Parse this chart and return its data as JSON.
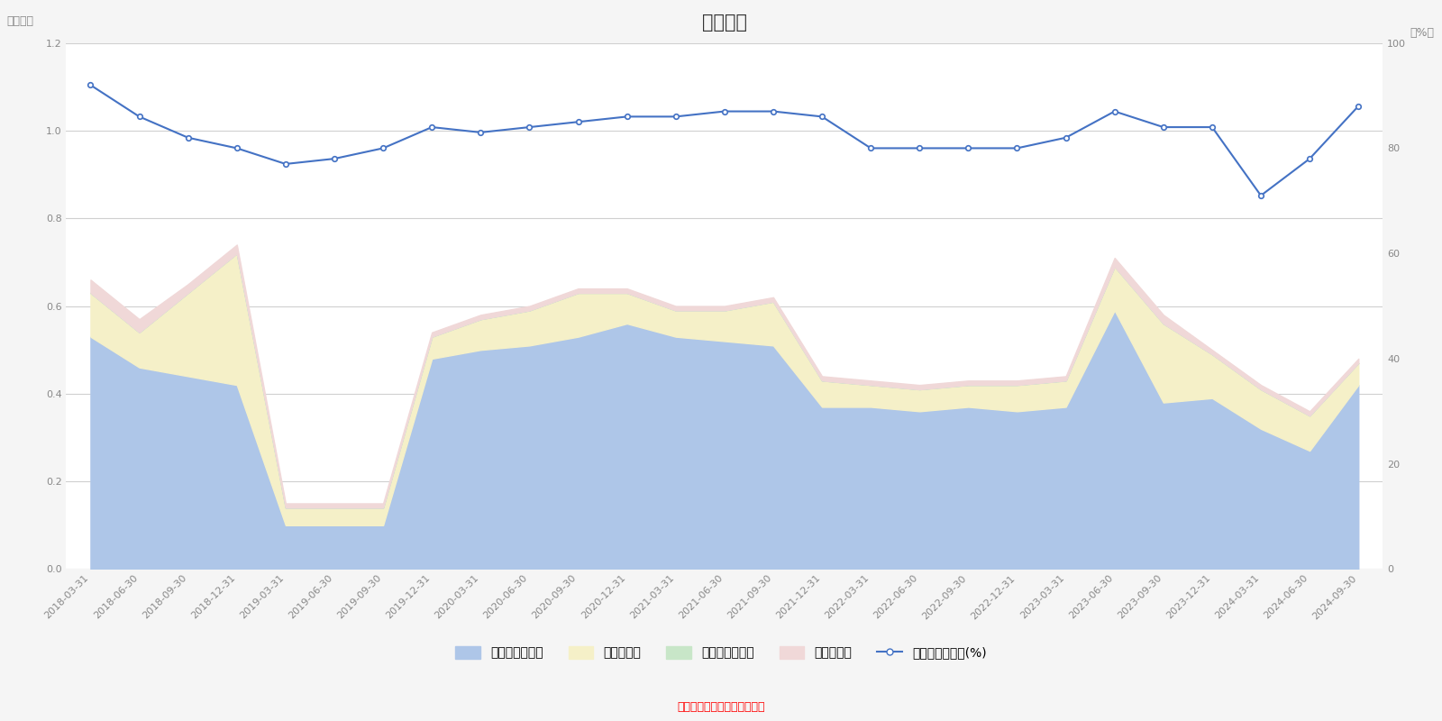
{
  "title": "仓位变化",
  "ylabel_left": "（亿元）",
  "ylabel_right": "（%）",
  "source_text": "制图数据来自恒生聚源数据库",
  "ylim_left": [
    0,
    1.2
  ],
  "ylim_right": [
    0,
    100
  ],
  "yticks_left": [
    0,
    0.2,
    0.4,
    0.6,
    0.8,
    1.0,
    1.2
  ],
  "yticks_right": [
    0,
    20,
    40,
    60,
    80,
    100
  ],
  "dates": [
    "2018-03-31",
    "2018-06-30",
    "2018-09-30",
    "2018-12-31",
    "2019-03-31",
    "2019-06-30",
    "2019-09-30",
    "2019-12-31",
    "2020-03-31",
    "2020-06-30",
    "2020-09-30",
    "2020-12-31",
    "2021-03-31",
    "2021-06-30",
    "2021-09-30",
    "2021-12-31",
    "2022-03-31",
    "2022-06-30",
    "2022-09-30",
    "2022-12-31",
    "2023-03-31",
    "2023-06-30",
    "2023-09-30",
    "2023-12-31",
    "2024-03-31",
    "2024-06-30",
    "2024-09-30"
  ],
  "stock_values": [
    0.53,
    0.46,
    0.44,
    0.42,
    0.1,
    0.1,
    0.1,
    0.48,
    0.5,
    0.51,
    0.53,
    0.56,
    0.53,
    0.52,
    0.51,
    0.37,
    0.37,
    0.36,
    0.37,
    0.36,
    0.37,
    0.59,
    0.38,
    0.39,
    0.32,
    0.27,
    0.42
  ],
  "cash_values": [
    0.1,
    0.08,
    0.19,
    0.3,
    0.04,
    0.04,
    0.04,
    0.05,
    0.07,
    0.08,
    0.1,
    0.07,
    0.06,
    0.07,
    0.1,
    0.06,
    0.05,
    0.05,
    0.05,
    0.06,
    0.06,
    0.1,
    0.18,
    0.1,
    0.09,
    0.08,
    0.05
  ],
  "bond_values": [
    0.0,
    0.0,
    0.0,
    0.0,
    0.0,
    0.0,
    0.0,
    0.0,
    0.0,
    0.0,
    0.0,
    0.0,
    0.0,
    0.0,
    0.0,
    0.0,
    0.0,
    0.0,
    0.0,
    0.0,
    0.0,
    0.0,
    0.0,
    0.0,
    0.0,
    0.0,
    0.0
  ],
  "other_values": [
    0.03,
    0.03,
    0.02,
    0.02,
    0.01,
    0.01,
    0.01,
    0.01,
    0.01,
    0.01,
    0.01,
    0.01,
    0.01,
    0.01,
    0.01,
    0.01,
    0.01,
    0.01,
    0.01,
    0.01,
    0.01,
    0.02,
    0.02,
    0.01,
    0.01,
    0.01,
    0.01
  ],
  "hold_ratio": [
    92,
    86,
    82,
    80,
    77,
    78,
    80,
    84,
    83,
    84,
    85,
    86,
    86,
    87,
    87,
    86,
    80,
    80,
    80,
    80,
    82,
    87,
    84,
    84,
    71,
    78,
    88
  ],
  "stock_color": "#aec6e8",
  "cash_color": "#f5f0c8",
  "bond_color": "#c8e6c8",
  "other_color": "#f0d8d8",
  "line_color": "#4472c4",
  "background_color": "#f5f5f5",
  "plot_bg_color": "#ffffff",
  "grid_color": "#d0d0d0",
  "tick_color": "#888888",
  "title_fontsize": 15,
  "label_fontsize": 9,
  "tick_fontsize": 8,
  "legend_fontsize": 10
}
